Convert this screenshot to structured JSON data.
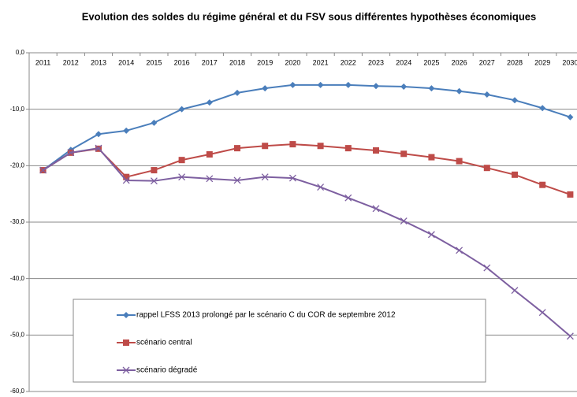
{
  "chart_data": {
    "type": "line",
    "title": "Evolution des soldes du régime général et du FSV sous différentes hypothèses économiques",
    "categories": [
      "2011",
      "2012",
      "2013",
      "2014",
      "2015",
      "2016",
      "2017",
      "2018",
      "2019",
      "2020",
      "2021",
      "2022",
      "2023",
      "2024",
      "2025",
      "2026",
      "2027",
      "2028",
      "2029",
      "2030"
    ],
    "series": [
      {
        "name": "rappel LFSS 2013 prolongé par le scénario C du COR de septembre 2012",
        "color": "#4a7ebb",
        "marker": "diamond",
        "values": [
          -20.8,
          -17.2,
          -14.4,
          -13.8,
          -12.4,
          -10.0,
          -8.8,
          -7.1,
          -6.3,
          -5.7,
          -5.7,
          -5.7,
          -5.9,
          -6.0,
          -6.3,
          -6.8,
          -7.4,
          -8.4,
          -9.8,
          -11.4
        ]
      },
      {
        "name": "scénario central",
        "color": "#be4b48",
        "marker": "square",
        "values": [
          -20.8,
          -17.7,
          -17.0,
          -22.0,
          -20.8,
          -19.0,
          -18.0,
          -16.9,
          -16.5,
          -16.2,
          -16.5,
          -16.9,
          -17.3,
          -17.9,
          -18.5,
          -19.2,
          -20.4,
          -21.6,
          -23.4,
          -25.1
        ]
      },
      {
        "name": "scénario dégradé",
        "color": "#7d5fa0",
        "marker": "x",
        "values": [
          -20.8,
          -17.7,
          -16.9,
          -22.6,
          -22.7,
          -22.0,
          -22.3,
          -22.6,
          -22.0,
          -22.2,
          -23.8,
          -25.7,
          -27.6,
          -29.8,
          -32.2,
          -35.0,
          -38.1,
          -42.1,
          -46.0,
          -50.2
        ]
      }
    ],
    "ylim": [
      -60,
      0
    ],
    "yticks": [
      {
        "value": 0,
        "label": "0,0"
      },
      {
        "value": -10,
        "label": "-10,0"
      },
      {
        "value": -20,
        "label": "-20,0"
      },
      {
        "value": -30,
        "label": "-30,0"
      },
      {
        "value": -40,
        "label": "-40,0"
      },
      {
        "value": -50,
        "label": "-50,0"
      },
      {
        "value": -60,
        "label": "-60,0"
      }
    ],
    "grid": true
  }
}
